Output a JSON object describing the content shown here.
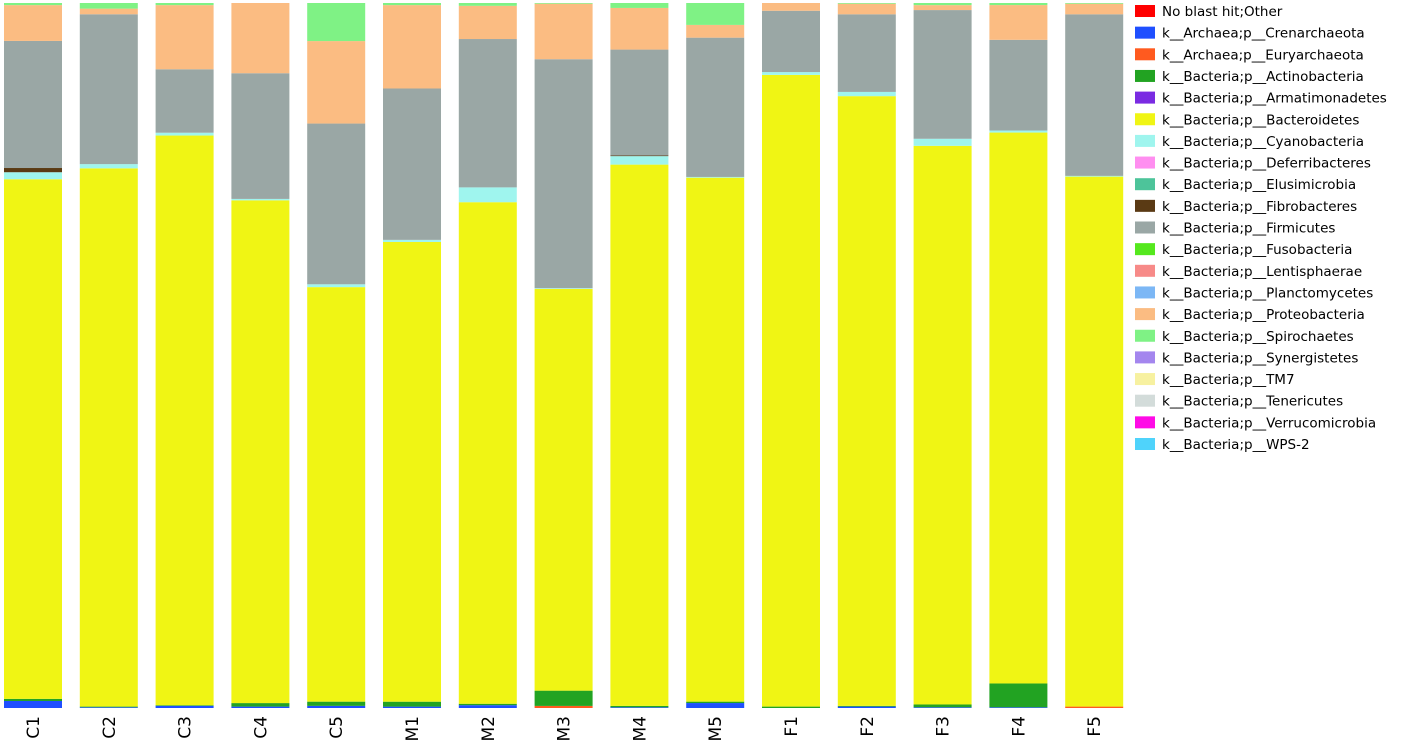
{
  "chart_data": {
    "type": "bar",
    "stacked": true,
    "normalized": true,
    "ylim": [
      0,
      1
    ],
    "grid": false,
    "legend_position": "right",
    "categories": [
      "C1",
      "C2",
      "C3",
      "C4",
      "C5",
      "M1",
      "M2",
      "M3",
      "M4",
      "M5",
      "F1",
      "F2",
      "F3",
      "F4",
      "F5"
    ],
    "series": [
      {
        "name": "No blast hit;Other",
        "color": "#ff0000",
        "values": [
          0,
          0,
          0,
          0,
          0,
          0,
          0,
          0,
          0,
          0,
          0,
          0,
          0,
          0,
          0
        ]
      },
      {
        "name": "k__Archaea;p__Crenarchaeota",
        "color": "#1f4fff",
        "values": [
          0.01,
          0.001,
          0.003,
          0.002,
          0.003,
          0.002,
          0.004,
          0,
          0.001,
          0.007,
          0,
          0.002,
          0.001,
          0.001,
          0
        ]
      },
      {
        "name": "k__Archaea;p__Euryarchaeota",
        "color": "#ff5a1f",
        "values": [
          0,
          0,
          0,
          0,
          0,
          0,
          0,
          0.003,
          0,
          0,
          0,
          0,
          0,
          0,
          0.002
        ]
      },
      {
        "name": "k__Bacteria;p__Actinobacteria",
        "color": "#22a322",
        "values": [
          0.003,
          0.001,
          0.001,
          0.005,
          0.006,
          0.007,
          0.002,
          0.022,
          0.002,
          0.002,
          0.002,
          0.001,
          0.004,
          0.035,
          0
        ]
      },
      {
        "name": "k__Bacteria;p__Armatimonadetes",
        "color": "#7a2be2",
        "values": [
          0,
          0,
          0,
          0,
          0,
          0,
          0,
          0,
          0,
          0,
          0,
          0,
          0,
          0,
          0
        ]
      },
      {
        "name": "k__Bacteria;p__Bacteroidetes",
        "color": "#f0f514",
        "values": [
          0.74,
          0.765,
          0.808,
          0.716,
          0.588,
          0.656,
          0.71,
          0.579,
          0.767,
          0.741,
          0.896,
          0.864,
          0.79,
          0.808,
          0.751
        ]
      },
      {
        "name": "k__Bacteria;p__Cyanobacteria",
        "color": "#9ff5ee",
        "values": [
          0.01,
          0.006,
          0.004,
          0.002,
          0.004,
          0.003,
          0.021,
          0.001,
          0.012,
          0.001,
          0.004,
          0.006,
          0.01,
          0.003,
          0.001
        ]
      },
      {
        "name": "k__Bacteria;p__Deferribacteres",
        "color": "#ff8ef0",
        "values": [
          0,
          0,
          0,
          0,
          0,
          0,
          0,
          0,
          0,
          0,
          0,
          0,
          0,
          0,
          0
        ]
      },
      {
        "name": "k__Bacteria;p__Elusimicrobia",
        "color": "#4dc49a",
        "values": [
          0,
          0,
          0,
          0,
          0,
          0,
          0,
          0,
          0,
          0,
          0,
          0,
          0,
          0,
          0
        ]
      },
      {
        "name": "k__Bacteria;p__Fibrobacteres",
        "color": "#5a3a14",
        "values": [
          0.006,
          0,
          0,
          0,
          0,
          0,
          0,
          0,
          0.001,
          0,
          0,
          0,
          0,
          0,
          0
        ]
      },
      {
        "name": "k__Bacteria;p__Firmicutes",
        "color": "#9aa7a5",
        "values": [
          0.181,
          0.213,
          0.09,
          0.179,
          0.228,
          0.216,
          0.21,
          0.33,
          0.15,
          0.197,
          0.087,
          0.11,
          0.182,
          0.133,
          0.229
        ]
      },
      {
        "name": "k__Bacteria;p__Fusobacteria",
        "color": "#55e81e",
        "values": [
          0,
          0,
          0,
          0,
          0,
          0,
          0,
          0,
          0,
          0,
          0,
          0,
          0,
          0,
          0
        ]
      },
      {
        "name": "k__Bacteria;p__Lentisphaerae",
        "color": "#f78a88",
        "values": [
          0,
          0,
          0,
          0,
          0,
          0,
          0,
          0,
          0,
          0,
          0,
          0,
          0,
          0,
          0
        ]
      },
      {
        "name": "k__Bacteria;p__Planctomycetes",
        "color": "#7cb7f5",
        "values": [
          0,
          0,
          0,
          0,
          0,
          0,
          0,
          0,
          0,
          0,
          0,
          0,
          0,
          0,
          0
        ]
      },
      {
        "name": "k__Bacteria;p__Proteobacteria",
        "color": "#fbbc82",
        "values": [
          0.051,
          0.008,
          0.091,
          0.1,
          0.117,
          0.119,
          0.047,
          0.08,
          0.059,
          0.018,
          0.011,
          0.015,
          0.007,
          0.051,
          0.015
        ]
      },
      {
        "name": "k__Bacteria;p__Spirochaetes",
        "color": "#7ff285",
        "values": [
          0.003,
          0.008,
          0.003,
          0,
          0.054,
          0.003,
          0.004,
          0.001,
          0.007,
          0.031,
          0,
          0.001,
          0.003,
          0.003,
          0.001
        ]
      },
      {
        "name": "k__Bacteria;p__Synergistetes",
        "color": "#a486ee",
        "values": [
          0,
          0,
          0,
          0,
          0,
          0,
          0,
          0,
          0,
          0,
          0,
          0,
          0,
          0,
          0
        ]
      },
      {
        "name": "k__Bacteria;p__TM7",
        "color": "#f7f1a0",
        "values": [
          0,
          0,
          0,
          0,
          0,
          0,
          0,
          0,
          0,
          0,
          0,
          0,
          0,
          0,
          0
        ]
      },
      {
        "name": "k__Bacteria;p__Tenericutes",
        "color": "#d3dcda",
        "values": [
          0,
          0,
          0,
          0,
          0,
          0,
          0,
          0,
          0,
          0,
          0,
          0,
          0,
          0,
          0
        ]
      },
      {
        "name": "k__Bacteria;p__Verrucomicrobia",
        "color": "#ff0ae6",
        "values": [
          0,
          0,
          0,
          0,
          0,
          0,
          0,
          0,
          0,
          0,
          0,
          0,
          0,
          0,
          0
        ]
      },
      {
        "name": "k__Bacteria;p__WPS-2",
        "color": "#4fd3fb",
        "values": [
          0,
          0,
          0,
          0,
          0,
          0,
          0,
          0,
          0,
          0,
          0,
          0,
          0,
          0,
          0
        ]
      }
    ]
  }
}
